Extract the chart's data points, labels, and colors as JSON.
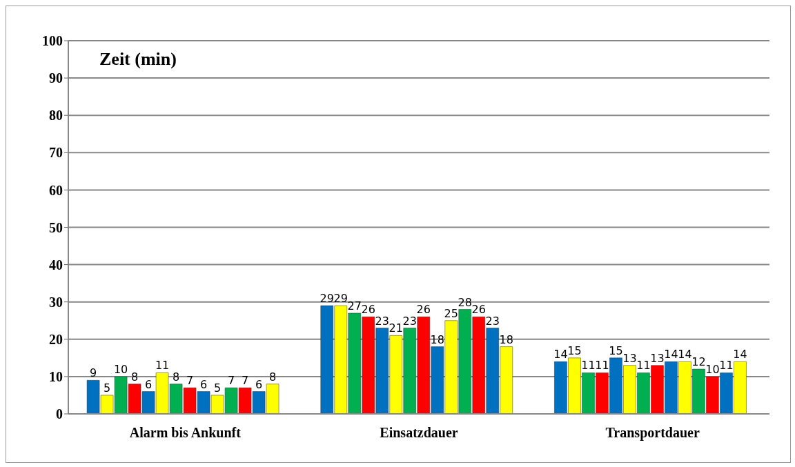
{
  "chart_data": {
    "type": "bar",
    "ylabel": "Zeit (min)",
    "categories": [
      "Alarm bis Ankunft",
      "Einsatzdauer",
      "Transportdauer"
    ],
    "series": [
      {
        "color": "#0070c0",
        "values": [
          9,
          29,
          14
        ]
      },
      {
        "color": "#ffff00",
        "values": [
          5,
          29,
          15
        ]
      },
      {
        "color": "#00b050",
        "values": [
          10,
          27,
          11
        ]
      },
      {
        "color": "#ff0000",
        "values": [
          8,
          26,
          11
        ]
      },
      {
        "color": "#0070c0",
        "values": [
          6,
          23,
          15
        ]
      },
      {
        "color": "#ffff00",
        "values": [
          11,
          21,
          13
        ]
      },
      {
        "color": "#00b050",
        "values": [
          8,
          23,
          11
        ]
      },
      {
        "color": "#ff0000",
        "values": [
          7,
          26,
          13
        ]
      },
      {
        "color": "#0070c0",
        "values": [
          6,
          18,
          14
        ]
      },
      {
        "color": "#ffff00",
        "values": [
          5,
          25,
          14
        ]
      },
      {
        "color": "#00b050",
        "values": [
          7,
          28,
          12
        ]
      },
      {
        "color": "#ff0000",
        "values": [
          7,
          26,
          10
        ]
      },
      {
        "color": "#0070c0",
        "values": [
          6,
          23,
          11
        ]
      },
      {
        "color": "#ffff00",
        "values": [
          8,
          18,
          14
        ]
      }
    ],
    "ylim": [
      0,
      100
    ],
    "yticks": [
      0,
      10,
      20,
      30,
      40,
      50,
      60,
      70,
      80,
      90,
      100
    ],
    "grid": "y",
    "data_labels": true,
    "legend": false
  }
}
